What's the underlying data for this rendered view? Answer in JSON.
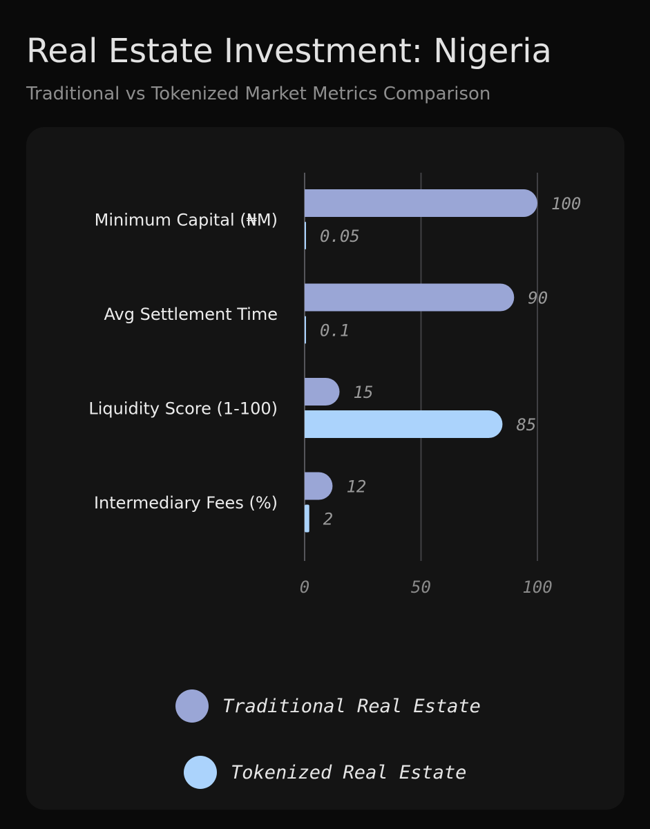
{
  "header": {
    "title": "Real Estate Investment: Nigeria",
    "subtitle": "Traditional vs Tokenized Market Metrics Comparison"
  },
  "legend": [
    {
      "label": "Traditional Real Estate",
      "color": "#9aa6d6"
    },
    {
      "label": "Tokenized Real Estate",
      "color": "#abd3fc"
    }
  ],
  "chart_data": {
    "type": "bar",
    "orientation": "horizontal",
    "categories": [
      "Minimum Capital (₦M)",
      "Avg Settlement Time",
      "Liquidity Score (1-100)",
      "Intermediary Fees (%)"
    ],
    "series": [
      {
        "name": "Traditional Real Estate",
        "color": "#9aa6d6",
        "values": [
          100,
          90,
          15,
          12
        ],
        "labels": [
          "100",
          "90",
          "15",
          "12"
        ]
      },
      {
        "name": "Tokenized Real Estate",
        "color": "#abd3fc",
        "values": [
          0.05,
          0.1,
          85,
          2
        ],
        "labels": [
          "0.05",
          "0.1",
          "85",
          "2"
        ]
      }
    ],
    "xlim": [
      0,
      100
    ],
    "xticks": [
      0,
      50,
      100
    ],
    "xtick_labels": [
      "0",
      "50",
      "100"
    ],
    "grid": "vertical",
    "legend_position": "bottom"
  }
}
